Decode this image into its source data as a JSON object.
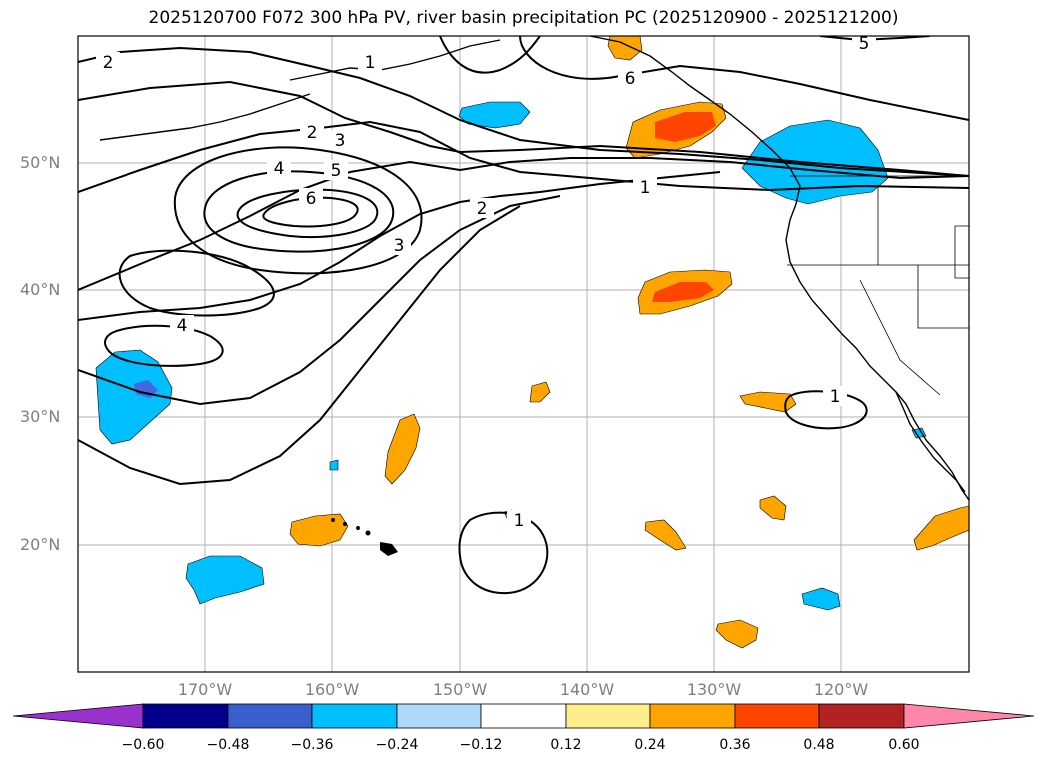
{
  "title": "2025120700 F072 300 hPa PV, river basin precipitation PC (2025120900 - 2025121200)",
  "map": {
    "lat_labels": [
      "50°N",
      "40°N",
      "30°N",
      "20°N"
    ],
    "lon_labels": [
      "170°W",
      "160°W",
      "150°W",
      "140°W",
      "130°W",
      "120°W"
    ],
    "contour_labels": [
      "2",
      "1",
      "6",
      "5",
      "2",
      "3",
      "4",
      "5",
      "6",
      "2",
      "3",
      "4",
      "1",
      "1",
      "1"
    ],
    "colors": {
      "contour": "#000000",
      "coast": "#000000",
      "grid": "#b0b0b0",
      "pos_0_24": "#ffa500",
      "pos_0_36": "#ff4500",
      "neg_0_24": "#00bfff",
      "neg_0_48": "#4169e1"
    }
  },
  "colorbar": {
    "ticks": [
      "−0.60",
      "−0.48",
      "−0.36",
      "−0.24",
      "−0.12",
      "0.12",
      "0.24",
      "0.36",
      "0.48",
      "0.60"
    ],
    "colors": [
      "#9932cc",
      "#00008b",
      "#3a5fcd",
      "#00bfff",
      "#add8f7",
      "#ffffff",
      "#ffec8b",
      "#ffa500",
      "#ff4500",
      "#b22222",
      "#ff88aa"
    ]
  }
}
